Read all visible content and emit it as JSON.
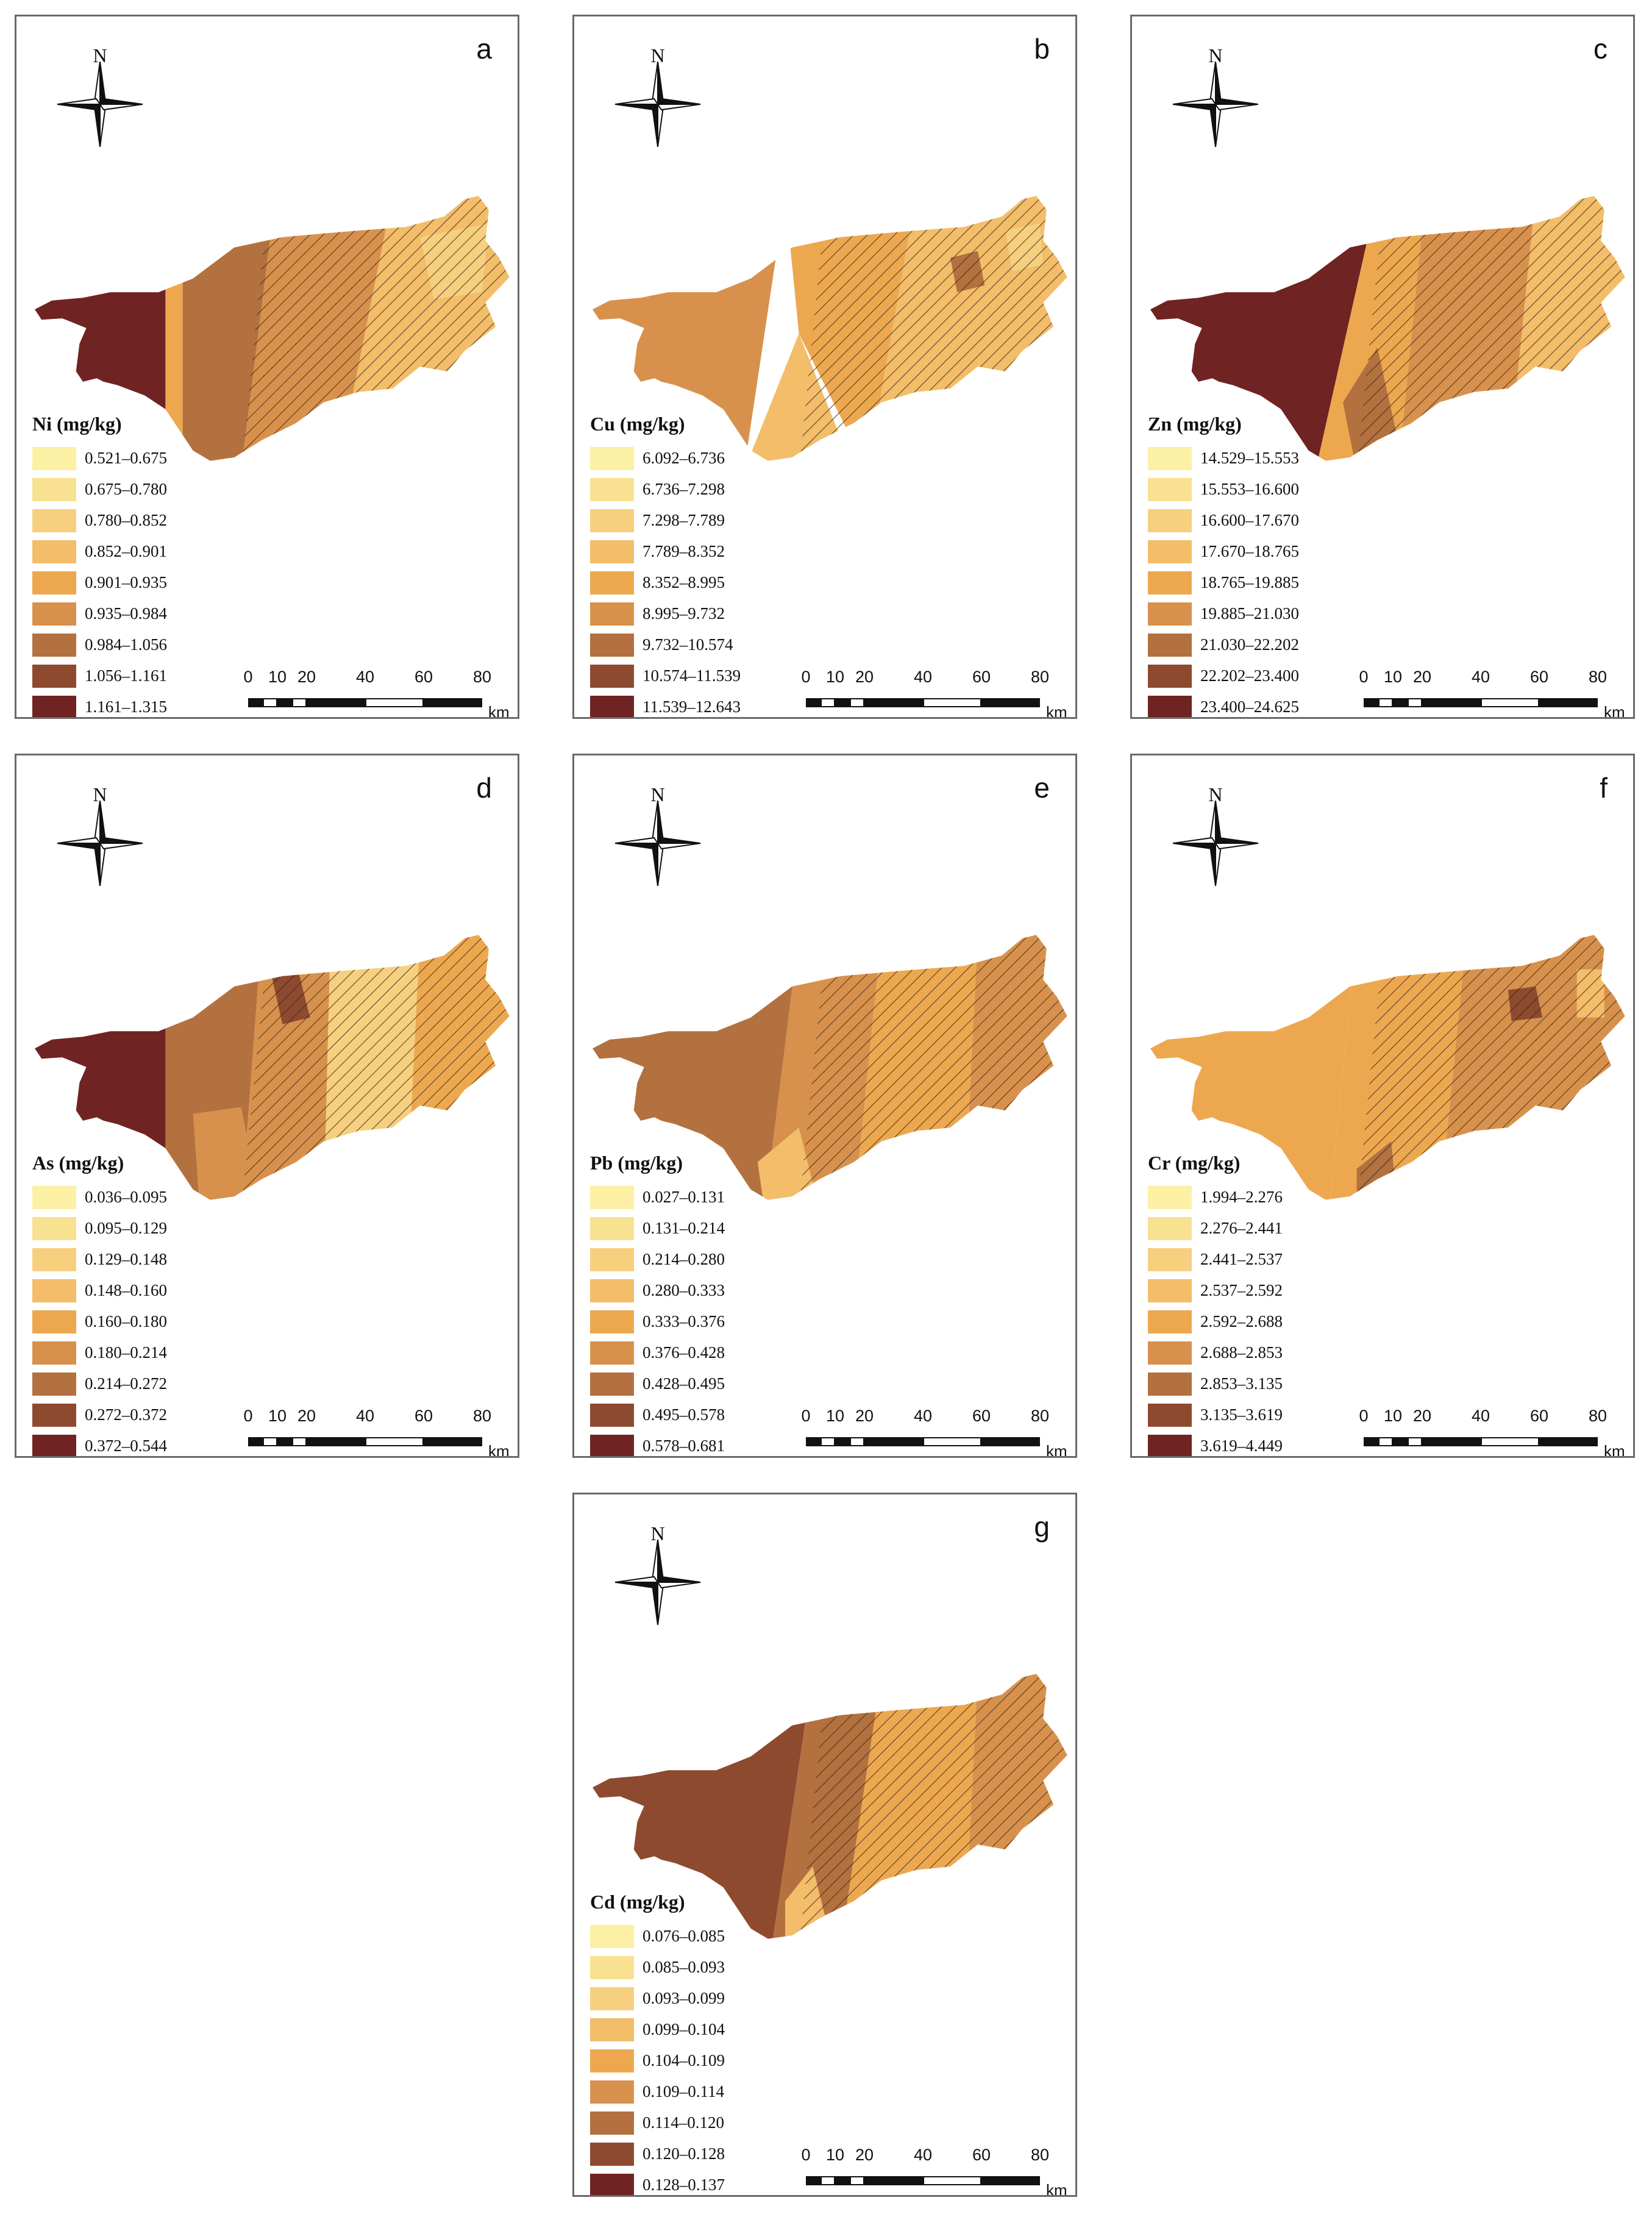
{
  "north_label": "N",
  "scale": {
    "ticks": [
      "0",
      "10",
      "20",
      "40",
      "60",
      "80"
    ],
    "unit": "km"
  },
  "colors": [
    "#fbf0a3",
    "#f8e291",
    "#f6d07f",
    "#f3bd69",
    "#eda84f",
    "#d8914c",
    "#b3713f",
    "#8e4a2f",
    "#6f2322"
  ],
  "panels": [
    {
      "letter": "a",
      "title": "Ni (mg/kg)",
      "classes": [
        "0.521–0.675",
        "0.675–0.780",
        "0.780–0.852",
        "0.852–0.901",
        "0.901–0.935",
        "0.935–0.984",
        "0.984–1.056",
        "1.056–1.161",
        "1.161–1.315"
      ]
    },
    {
      "letter": "b",
      "title": "Cu (mg/kg)",
      "classes": [
        "6.092–6.736",
        "6.736–7.298",
        "7.298–7.789",
        "7.789–8.352",
        "8.352–8.995",
        "8.995–9.732",
        "9.732–10.574",
        "10.574–11.539",
        "11.539–12.643"
      ]
    },
    {
      "letter": "c",
      "title": "Zn (mg/kg)",
      "classes": [
        "14.529–15.553",
        "15.553–16.600",
        "16.600–17.670",
        "17.670–18.765",
        "18.765–19.885",
        "19.885–21.030",
        "21.030–22.202",
        "22.202–23.400",
        "23.400–24.625"
      ]
    },
    {
      "letter": "d",
      "title": "As (mg/kg)",
      "classes": [
        "0.036–0.095",
        "0.095–0.129",
        "0.129–0.148",
        "0.148–0.160",
        "0.160–0.180",
        "0.180–0.214",
        "0.214–0.272",
        "0.272–0.372",
        "0.372–0.544"
      ]
    },
    {
      "letter": "e",
      "title": "Pb (mg/kg)",
      "classes": [
        "0.027–0.131",
        "0.131–0.214",
        "0.214–0.280",
        "0.280–0.333",
        "0.333–0.376",
        "0.376–0.428",
        "0.428–0.495",
        "0.495–0.578",
        "0.578–0.681"
      ]
    },
    {
      "letter": "f",
      "title": "Cr (mg/kg)",
      "classes": [
        "1.994–2.276",
        "2.276–2.441",
        "2.441–2.537",
        "2.537–2.592",
        "2.592–2.688",
        "2.688–2.853",
        "2.853–3.135",
        "3.135–3.619",
        "3.619–4.449"
      ]
    },
    {
      "letter": "g",
      "title": "Cd (mg/kg)",
      "classes": [
        "0.076–0.085",
        "0.085–0.093",
        "0.093–0.099",
        "0.099–0.104",
        "0.104–0.109",
        "0.109–0.114",
        "0.114–0.120",
        "0.120–0.128",
        "0.128–0.137"
      ]
    }
  ]
}
